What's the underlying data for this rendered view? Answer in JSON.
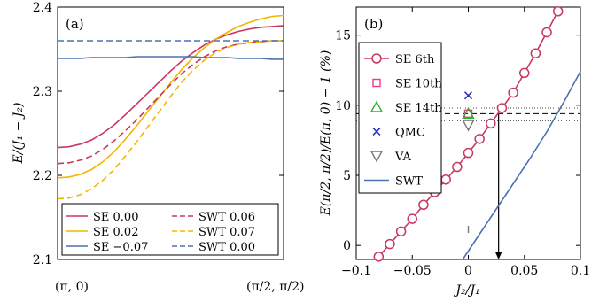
{
  "chart_data": [
    {
      "type": "line",
      "panel_label": "(a)",
      "ylabel": "E/(J₁ − J₂)",
      "xlabel": "",
      "x_tick_labels": [
        "(π, 0)",
        "(π/2, π/2)"
      ],
      "x": [
        0,
        0.05,
        0.1,
        0.15,
        0.2,
        0.25,
        0.3,
        0.35,
        0.4,
        0.45,
        0.5,
        0.55,
        0.6,
        0.65,
        0.7,
        0.75,
        0.8,
        0.85,
        0.9,
        0.95,
        1.0
      ],
      "ylim": [
        2.1,
        2.4
      ],
      "yticks": [
        "2.1",
        "2.2",
        "2.3",
        "2.4"
      ],
      "ytick_values": [
        2.1,
        2.2,
        2.3,
        2.4
      ],
      "grid": false,
      "legend_position": "bottom",
      "series": [
        {
          "name": "SE 0.00",
          "color": "#c8385f",
          "dash": "solid",
          "values": [
            2.233,
            2.234,
            2.237,
            2.242,
            2.25,
            2.26,
            2.272,
            2.285,
            2.298,
            2.311,
            2.324,
            2.336,
            2.346,
            2.355,
            2.362,
            2.367,
            2.371,
            2.374,
            2.376,
            2.377,
            2.378
          ]
        },
        {
          "name": "SE 0.02",
          "color": "#f2b600",
          "dash": "solid",
          "values": [
            2.197,
            2.198,
            2.201,
            2.207,
            2.216,
            2.228,
            2.243,
            2.259,
            2.276,
            2.293,
            2.31,
            2.326,
            2.34,
            2.352,
            2.362,
            2.37,
            2.377,
            2.382,
            2.386,
            2.389,
            2.39
          ]
        },
        {
          "name": "SE −0.07",
          "color": "#4c72b0",
          "dash": "solid",
          "values": [
            2.339,
            2.339,
            2.339,
            2.34,
            2.34,
            2.34,
            2.34,
            2.341,
            2.341,
            2.341,
            2.341,
            2.341,
            2.341,
            2.34,
            2.34,
            2.34,
            2.339,
            2.339,
            2.339,
            2.338,
            2.338
          ]
        },
        {
          "name": "SWT 0.06",
          "color": "#c8385f",
          "dash": "dashed",
          "values": [
            2.214,
            2.215,
            2.218,
            2.223,
            2.231,
            2.241,
            2.253,
            2.266,
            2.28,
            2.294,
            2.308,
            2.321,
            2.332,
            2.341,
            2.348,
            2.353,
            2.356,
            2.358,
            2.359,
            2.36,
            2.36
          ]
        },
        {
          "name": "SWT 0.07",
          "color": "#f2b600",
          "dash": "dashed",
          "values": [
            2.172,
            2.173,
            2.177,
            2.184,
            2.194,
            2.207,
            2.223,
            2.24,
            2.258,
            2.276,
            2.294,
            2.311,
            2.325,
            2.337,
            2.346,
            2.352,
            2.356,
            2.358,
            2.359,
            2.36,
            2.36
          ]
        },
        {
          "name": "SWT 0.00",
          "color": "#4c72b0",
          "dash": "dashed",
          "values": [
            2.36,
            2.36,
            2.36,
            2.36,
            2.36,
            2.36,
            2.36,
            2.36,
            2.36,
            2.36,
            2.36,
            2.36,
            2.36,
            2.36,
            2.36,
            2.36,
            2.36,
            2.36,
            2.36,
            2.36,
            2.36
          ]
        }
      ]
    },
    {
      "type": "line",
      "panel_label": "(b)",
      "xlabel": "J₂/J₁",
      "ylabel": "E(π/2, π/2)/E(π, 0) − 1 (%)",
      "xlim": [
        -0.1,
        0.1
      ],
      "ylim": [
        -1,
        17
      ],
      "xticks": [
        "−0.1",
        "−0.05",
        "0",
        "0.05",
        "0.1"
      ],
      "xtick_values": [
        -0.1,
        -0.05,
        0,
        0.05,
        0.1
      ],
      "yticks": [
        "0",
        "5",
        "10",
        "15"
      ],
      "ytick_values": [
        0,
        5,
        10,
        15
      ],
      "grid": false,
      "legend_position": "top-left",
      "series": [
        {
          "name": "SE 6th",
          "color": "#c8385f",
          "marker": "circle",
          "x": [
            -0.08,
            -0.07,
            -0.06,
            -0.05,
            -0.04,
            -0.03,
            -0.02,
            -0.01,
            0.0,
            0.01,
            0.02,
            0.03,
            0.04,
            0.05,
            0.06,
            0.07,
            0.08
          ],
          "y": [
            -0.8,
            0.1,
            1.0,
            1.9,
            2.9,
            3.8,
            4.7,
            5.6,
            6.6,
            7.6,
            8.7,
            9.8,
            10.9,
            12.3,
            13.7,
            15.2,
            16.7
          ]
        },
        {
          "name": "SE 10th",
          "color": "#e8398f",
          "marker": "square",
          "x": [
            0.0
          ],
          "y": [
            9.4
          ]
        },
        {
          "name": "SE 14th",
          "color": "#22bb22",
          "marker": "triangle-up",
          "x": [
            0.0
          ],
          "y": [
            9.4
          ]
        },
        {
          "name": "QMC",
          "color": "#2222cc",
          "marker": "x",
          "x": [
            0.0
          ],
          "y": [
            10.7
          ]
        },
        {
          "name": "VA",
          "color": "#777777",
          "marker": "triangle-down",
          "x": [
            0.0
          ],
          "y": [
            8.6
          ],
          "error": [
            0.9,
            1.4
          ]
        },
        {
          "name": "SWT",
          "color": "#4c72b0",
          "marker": "none",
          "x": [
            -0.005,
            0.01,
            0.025,
            0.04,
            0.055,
            0.07,
            0.085,
            0.1
          ],
          "y": [
            -1.0,
            0.8,
            2.6,
            4.4,
            6.2,
            8.1,
            10.2,
            12.4
          ]
        }
      ],
      "reference_lines": {
        "dashed_y": 9.4,
        "dotted_y": [
          9.8,
          8.9
        ]
      },
      "arrow": {
        "x": 0.027,
        "from_y": 9.4,
        "to_y": -1
      }
    }
  ]
}
